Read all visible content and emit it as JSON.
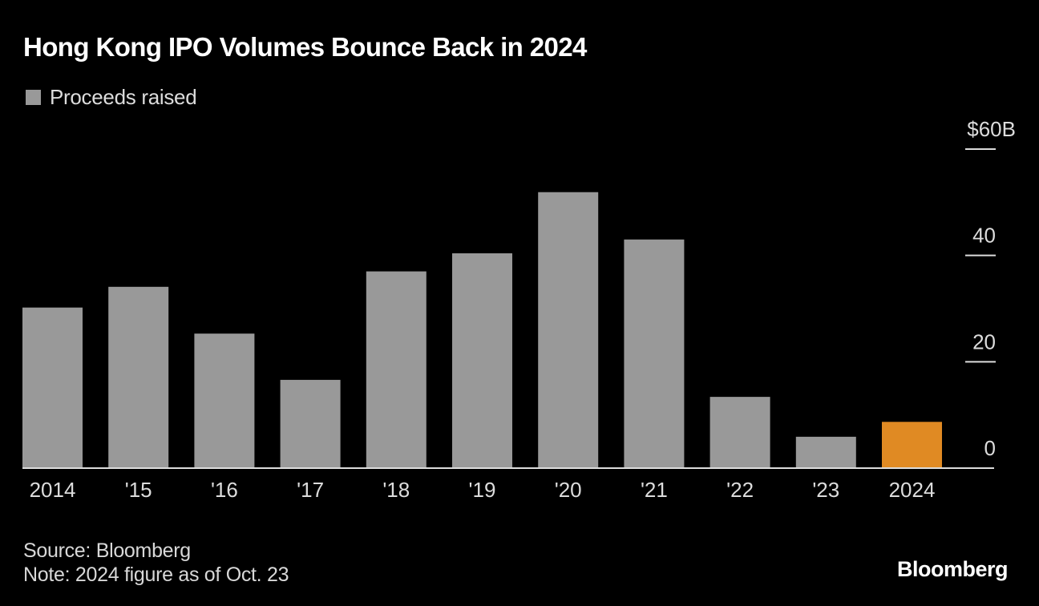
{
  "header": {
    "title": "Hong Kong IPO Volumes Bounce Back in 2024"
  },
  "legend": {
    "label": "Proceeds raised"
  },
  "footer": {
    "source": "Source: Bloomberg",
    "note": "Note: 2024 figure as of Oct. 23",
    "brand": "Bloomberg"
  },
  "colors": {
    "background": "#000000",
    "bar_default": "#999999",
    "bar_highlight": "#e08a23",
    "axis": "#dcdcdc"
  },
  "chart_data": {
    "type": "bar",
    "title": "Hong Kong IPO Volumes Bounce Back in 2024",
    "xlabel": "",
    "ylabel": "Proceeds raised ($B)",
    "categories": [
      "2014",
      "'15",
      "'16",
      "'17",
      "'18",
      "'19",
      "'20",
      "'21",
      "'22",
      "'23",
      "2024"
    ],
    "series": [
      {
        "name": "Proceeds raised",
        "values": [
          30.2,
          34.1,
          25.3,
          16.6,
          37.0,
          40.4,
          51.9,
          43.0,
          13.4,
          5.9,
          8.7
        ]
      }
    ],
    "highlight_index": 10,
    "ylim": [
      0,
      60
    ],
    "yticks": [
      0,
      20,
      40,
      60
    ],
    "ytick_labels": [
      "0",
      "20",
      "40",
      "$60B"
    ],
    "y_axis_side": "right",
    "grid": false,
    "legend_position": "top-left",
    "source": "Bloomberg",
    "note": "2024 figure as of Oct. 23"
  }
}
